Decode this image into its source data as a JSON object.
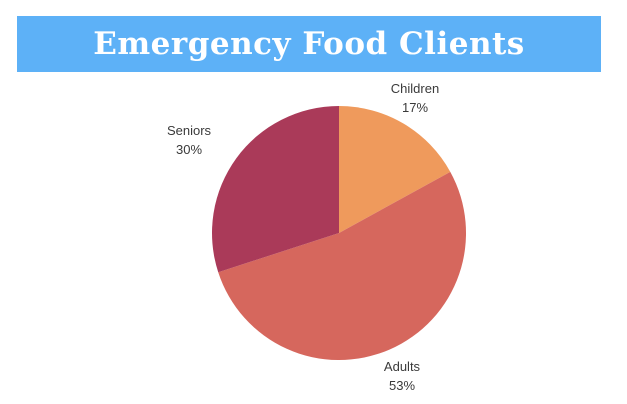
{
  "title": "Emergency Food Clients",
  "colors": {
    "title_bar": "#5db1f7",
    "title_text": "#ffffff",
    "children": "#ef9a5c",
    "adults": "#d6675d",
    "seniors": "#aa3a59"
  },
  "chart_data": {
    "type": "pie",
    "title": "Emergency Food Clients",
    "slices": [
      {
        "label": "Children",
        "value": 17,
        "display": "17%",
        "color": "#ef9a5c"
      },
      {
        "label": "Adults",
        "value": 53,
        "display": "53%",
        "color": "#d6675d"
      },
      {
        "label": "Seniors",
        "value": 30,
        "display": "30%",
        "color": "#aa3a59"
      }
    ],
    "start_angle": "12 o'clock",
    "direction": "clockwise",
    "legend": "none"
  }
}
